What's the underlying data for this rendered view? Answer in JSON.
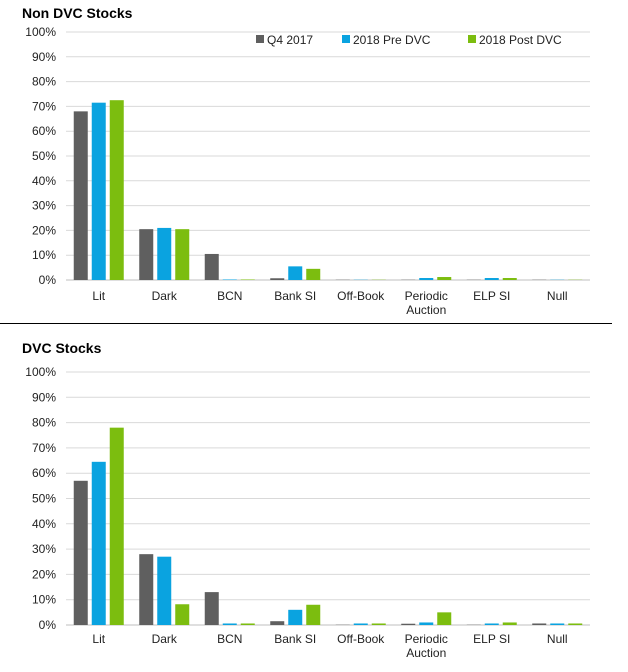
{
  "colors": {
    "q4_2017": "#5f5f5f",
    "pre_dvc": "#0aa3e0",
    "post_dvc": "#7cbd0f",
    "grid": "#d9d9d9",
    "axis": "#bfbfbf"
  },
  "legend_labels": [
    "Q4 2017",
    "2018 Pre DVC",
    "2018 Post DVC"
  ],
  "chart_data": [
    {
      "type": "bar",
      "title": "Non DVC Stocks",
      "categories": [
        "Lit",
        "Dark",
        "BCN",
        "Bank SI",
        "Off-Book",
        "Periodic\nAuction",
        "ELP SI",
        "Null"
      ],
      "ylim": [
        0,
        100
      ],
      "yticks": [
        "0%",
        "10%",
        "20%",
        "30%",
        "40%",
        "50%",
        "60%",
        "70%",
        "80%",
        "90%",
        "100%"
      ],
      "grid": true,
      "legend": "top-right",
      "series": [
        {
          "name": "Q4 2017",
          "values": [
            68,
            20.5,
            10.5,
            0.7,
            0.1,
            0.1,
            0.1,
            0.1
          ]
        },
        {
          "name": "2018 Pre DVC",
          "values": [
            71.5,
            21,
            0.2,
            5.5,
            0.1,
            0.8,
            0.8,
            0.1
          ]
        },
        {
          "name": "2018 Post DVC",
          "values": [
            72.5,
            20.5,
            0.2,
            4.5,
            0.1,
            1.2,
            0.8,
            0.1
          ]
        }
      ]
    },
    {
      "type": "bar",
      "title": "DVC Stocks",
      "categories": [
        "Lit",
        "Dark",
        "BCN",
        "Bank SI",
        "Off-Book",
        "Periodic\nAuction",
        "ELP SI",
        "Null"
      ],
      "ylim": [
        0,
        100
      ],
      "yticks": [
        "0%",
        "10%",
        "20%",
        "30%",
        "40%",
        "50%",
        "60%",
        "70%",
        "80%",
        "90%",
        "100%"
      ],
      "grid": true,
      "legend": "none",
      "series": [
        {
          "name": "Q4 2017",
          "values": [
            57,
            28,
            13,
            1.5,
            0.1,
            0.5,
            0.1,
            0.6
          ]
        },
        {
          "name": "2018 Pre DVC",
          "values": [
            64.5,
            27,
            0.6,
            6,
            0.6,
            1,
            0.6,
            0.6
          ]
        },
        {
          "name": "2018 Post DVC",
          "values": [
            78,
            8.2,
            0.6,
            8,
            0.6,
            5,
            1,
            0.6
          ]
        }
      ]
    }
  ]
}
